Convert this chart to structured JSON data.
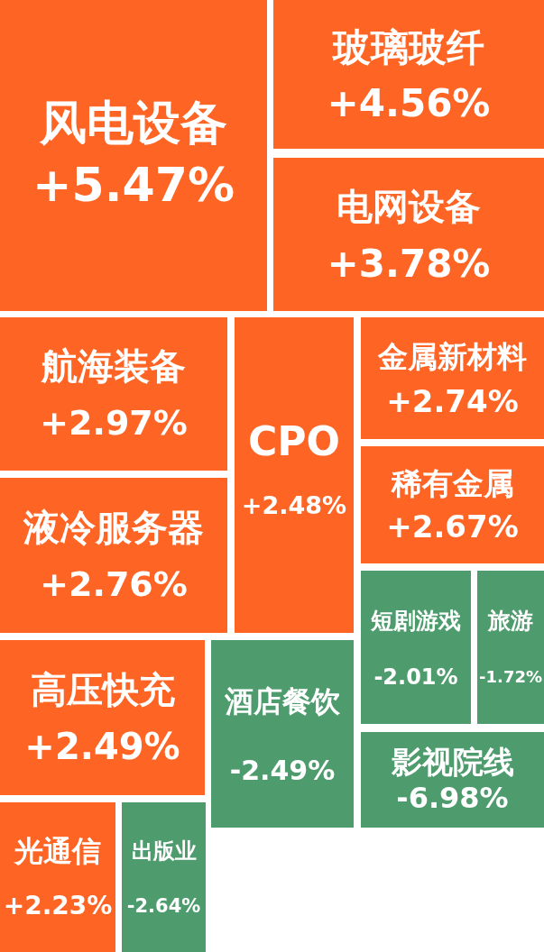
{
  "chart_data": {
    "type": "other",
    "categories": [
      "风电设备",
      "玻璃玻纤",
      "电网设备",
      "航海装备",
      "CPO",
      "金属新材料",
      "液冷服务器",
      "稀有金属",
      "短剧游戏",
      "旅游",
      "高压快充",
      "酒店餐饮",
      "影视院线",
      "光通信",
      "出版业"
    ],
    "values": [
      5.47,
      4.56,
      3.78,
      2.97,
      2.48,
      2.74,
      2.76,
      2.67,
      -2.01,
      -1.72,
      2.49,
      -2.49,
      -6.98,
      2.23,
      -2.64
    ],
    "value_labels": [
      "+5.47%",
      "+4.56%",
      "+3.78%",
      "+2.97%",
      "+2.48%",
      "+2.74%",
      "+2.76%",
      "+2.67%",
      "-2.01%",
      "-1.72%",
      "+2.49%",
      "-2.49%",
      "-6.98%",
      "+2.23%",
      "-2.64%"
    ],
    "colors": [
      "#fe6424",
      "#fe6424",
      "#fe6424",
      "#fe6424",
      "#fe6424",
      "#fe6424",
      "#fe6424",
      "#fe6424",
      "#4e9c6e",
      "#4e9c6e",
      "#fe6424",
      "#4e9c6e",
      "#4e9c6e",
      "#fe6424",
      "#4e9c6e"
    ]
  }
}
